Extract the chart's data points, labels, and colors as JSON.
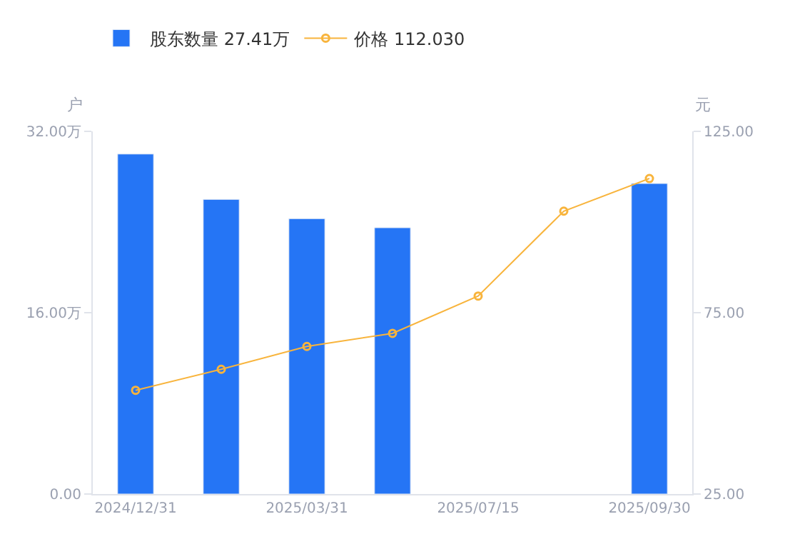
{
  "chart_data": {
    "type": "bar",
    "categories": [
      "2024/12/31",
      null,
      "2025/03/31",
      null,
      "2025/07/15",
      null,
      "2025/09/30"
    ],
    "ylabel": "户",
    "y2label": "元",
    "ylim": [
      0,
      32
    ],
    "yticks": [
      {
        "value": 0,
        "label": "0.00"
      },
      {
        "value": 16,
        "label": "16.00万"
      },
      {
        "value": 32,
        "label": "32.00万"
      }
    ],
    "y2lim": [
      25,
      125
    ],
    "y2ticks": [
      {
        "value": 25,
        "label": "25.00"
      },
      {
        "value": 75,
        "label": "75.00"
      },
      {
        "value": 125,
        "label": "125.00"
      }
    ],
    "series": [
      {
        "name": "股东数量 27.41万",
        "color": "#2575f5",
        "values": [
          30.0,
          26.0,
          24.3,
          23.5,
          null,
          null,
          27.4
        ]
      },
      {
        "name": "价格 112.030",
        "type": "line",
        "axis": "y2",
        "color": "#f8b43c",
        "marker": "circle",
        "values": [
          53.6,
          59.4,
          65.7,
          69.3,
          79.6,
          103.0,
          112.0
        ]
      }
    ],
    "legend": "top left"
  }
}
